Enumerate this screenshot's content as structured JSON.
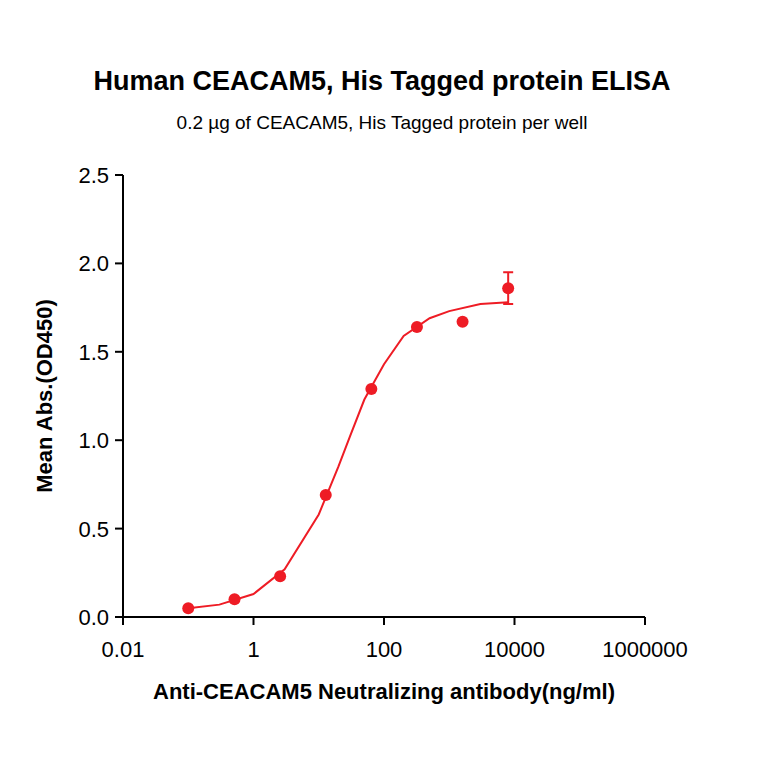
{
  "chart_data": {
    "type": "scatter",
    "title": "Human CEACAM5, His Tagged protein ELISA",
    "subtitle": "0.2 µg of CEACAM5, His Tagged protein per well",
    "x_label": "Anti-CEACAM5 Neutralizing antibody(ng/ml)",
    "y_label": "Mean Abs.(OD450)",
    "log": "x",
    "xlim": [
      0.01,
      1000000
    ],
    "ylim": [
      0,
      2.5
    ],
    "xticks": [
      0.01,
      1,
      100,
      10000,
      1000000
    ],
    "yticks": [
      {
        "value": 0,
        "label": "0.0"
      },
      0.5,
      {
        "value": 1,
        "label": "1.0"
      },
      1.5,
      {
        "value": 2,
        "label": "2.0"
      },
      2.5
    ],
    "grid": false,
    "series": [
      {
        "type": "scatter",
        "color": "#ee1c25",
        "marker": "circle",
        "x": [
          0.1,
          0.512,
          2.56,
          12.8,
          64,
          320,
          1600,
          8000
        ],
        "values": [
          0.05,
          0.1,
          0.23,
          0.69,
          1.29,
          1.64,
          1.67,
          1.86
        ],
        "errors": [
          0,
          0,
          0,
          0,
          0,
          0,
          0,
          0.09
        ]
      },
      {
        "type": "line",
        "color": "#ee1c25",
        "line_style": "solid",
        "x": [
          0.1,
          0.3,
          1,
          3,
          10,
          20,
          30,
          50,
          100,
          200,
          500,
          1000,
          3000,
          8000
        ],
        "values": [
          0.05,
          0.07,
          0.13,
          0.27,
          0.58,
          0.85,
          1.02,
          1.23,
          1.43,
          1.59,
          1.69,
          1.73,
          1.77,
          1.78
        ]
      }
    ]
  }
}
